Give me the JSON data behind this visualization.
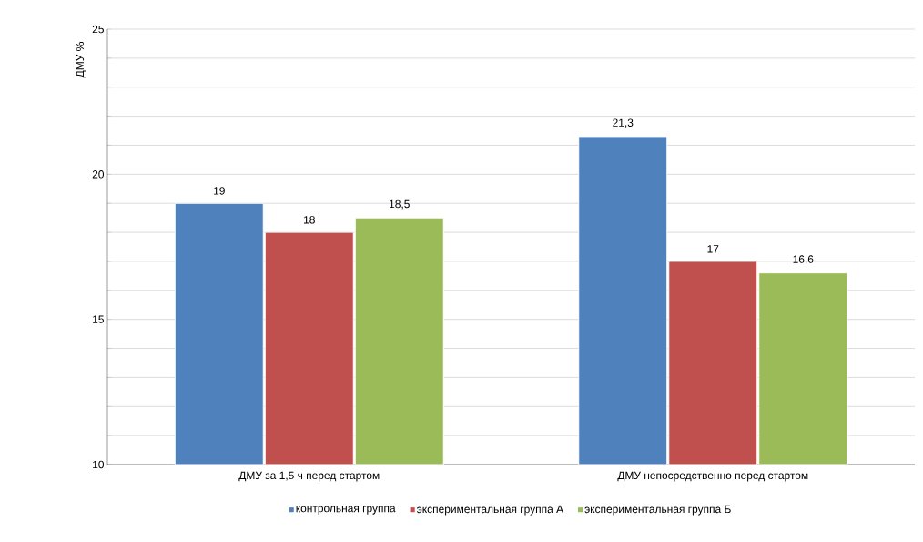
{
  "chart_data": {
    "type": "bar",
    "ylabel": "ДМУ %",
    "categories": [
      "ДМУ за 1,5 ч перед стартом",
      "ДМУ непосредственно перед стартом"
    ],
    "series": [
      {
        "name": "контрольная группа",
        "color": "#4f81bd",
        "values": [
          19,
          21.3
        ],
        "value_labels": [
          "19",
          "21,3"
        ]
      },
      {
        "name": "экспериментальная группа А",
        "color": "#c0504d",
        "values": [
          18,
          17
        ],
        "value_labels": [
          "18",
          "17"
        ]
      },
      {
        "name": "экспериментальная группа Б",
        "color": "#9bbb59",
        "values": [
          18.5,
          16.6
        ],
        "value_labels": [
          "18,5",
          "16,6"
        ]
      }
    ],
    "ylim": [
      10,
      25
    ],
    "yticks": [
      10,
      {
        "value": 11,
        "label": null
      },
      {
        "value": 12,
        "label": null
      },
      {
        "value": 13,
        "label": null
      },
      {
        "value": 14,
        "label": null
      },
      15,
      {
        "value": 16,
        "label": null
      },
      {
        "value": 17,
        "label": null
      },
      {
        "value": 18,
        "label": null
      },
      {
        "value": 19,
        "label": null
      },
      20,
      {
        "value": 21,
        "label": null
      },
      {
        "value": 22,
        "label": null
      },
      {
        "value": 23,
        "label": null
      },
      {
        "value": 24,
        "label": null
      },
      25
    ],
    "grid": "y",
    "legend": "bottom"
  }
}
